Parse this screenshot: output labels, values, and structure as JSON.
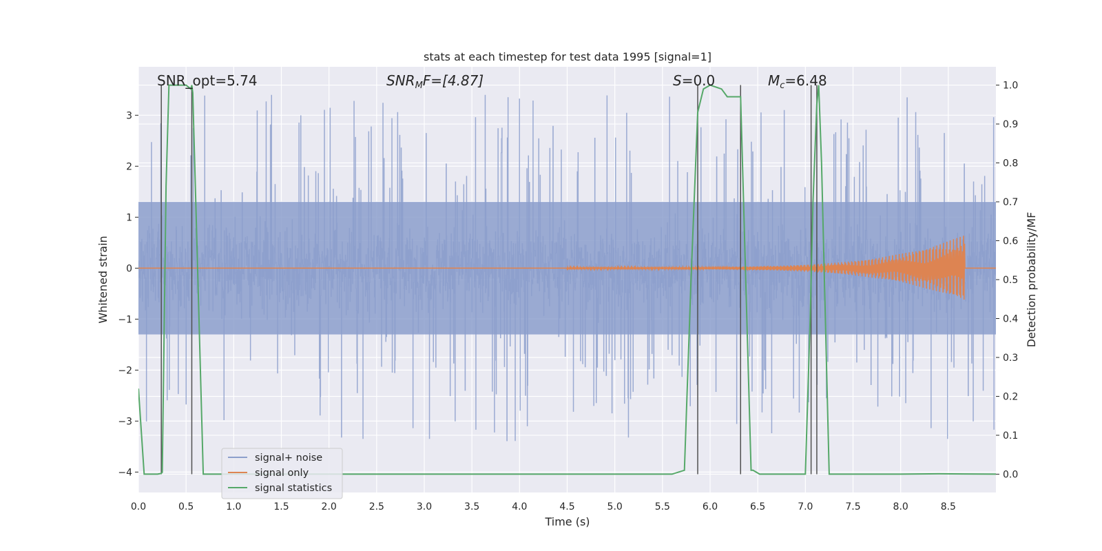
{
  "chart_data": {
    "type": "line",
    "title": "stats at each timestep for test data 1995 [signal=1]",
    "xlabel": "Time (s)",
    "ylabel_left": "Whitened strain",
    "ylabel_right": "Detection probability/MF",
    "xlim": [
      0.0,
      9.0
    ],
    "ylim_left": [
      -4.4,
      3.95
    ],
    "ylim_right": [
      -0.047,
      1.047
    ],
    "x_ticks": [
      "0.0",
      "0.5",
      "1.0",
      "1.5",
      "2.0",
      "2.5",
      "3.0",
      "3.5",
      "4.0",
      "4.5",
      "5.0",
      "5.5",
      "6.0",
      "6.5",
      "7.0",
      "7.5",
      "8.0",
      "8.5"
    ],
    "y_ticks_left": [
      "3",
      "2",
      "1",
      "0",
      "−1",
      "−2",
      "−3",
      "−4"
    ],
    "y_ticks_right": [
      "1.0",
      "0.9",
      "0.8",
      "0.7",
      "0.6",
      "0.5",
      "0.4",
      "0.3",
      "0.2",
      "0.1",
      "0.0"
    ],
    "annotations": {
      "snr_opt": "SNR_opt=5.74",
      "snr_mf_base": "SNR",
      "snr_mf_sub": "M",
      "snr_mf_rest": "F=[4.87]",
      "s_base": "S",
      "s_rest": "=0.0",
      "mc_base": "M",
      "mc_sub": "c",
      "mc_rest": "=6.48"
    },
    "legend": {
      "position": "lower-left",
      "entries": [
        "signal+ noise",
        "signal only",
        "signal statistics"
      ]
    },
    "series": [
      {
        "name": "signal+ noise",
        "axis": "left",
        "color": "#8c9fcc",
        "description": "whitened noisy strain, roughly +/-1.3 with spikes to about +/-3.5",
        "amplitude": 1.3,
        "spike_max": 3.6
      },
      {
        "name": "signal only",
        "axis": "left",
        "color": "#dd8452",
        "description": "chirp starting near 4.5 s, growing to about 0.65 at 8.67 s",
        "start": 4.5,
        "merger": 8.67,
        "peak_amplitude": 0.65
      },
      {
        "name": "signal statistics",
        "axis": "right",
        "color": "#55a868",
        "x": [
          0.0,
          0.06,
          0.2,
          0.24,
          0.25,
          0.29,
          0.32,
          0.5,
          0.55,
          0.56,
          0.57,
          0.68,
          0.69,
          1.0,
          2.0,
          3.0,
          4.0,
          5.0,
          5.6,
          5.73,
          5.8,
          5.87,
          5.93,
          6.0,
          6.12,
          6.18,
          6.25,
          6.32,
          6.43,
          6.45,
          6.52,
          7.0,
          7.05,
          7.08,
          7.12,
          7.14,
          7.17,
          7.25,
          7.3,
          8.0,
          8.4,
          9.0
        ],
        "values": [
          0.22,
          0.0,
          0.0,
          0.002,
          0.005,
          0.74,
          1.0,
          1.0,
          0.99,
          1.0,
          0.98,
          0.0,
          0.0,
          0.0,
          0.0,
          0.0,
          0.0,
          0.0,
          0.0,
          0.01,
          0.5,
          0.93,
          0.99,
          1.0,
          0.99,
          0.97,
          0.97,
          0.97,
          0.01,
          0.01,
          0.0,
          0.0,
          0.4,
          0.7,
          0.95,
          1.0,
          0.8,
          0.0,
          0.0,
          0.0,
          0.001,
          0.0
        ]
      }
    ],
    "vertical_markers": {
      "color": "#505050",
      "x": [
        0.24,
        0.56,
        5.87,
        6.32,
        7.06,
        7.12
      ],
      "top_values": [
        1.0,
        1.0,
        1.0,
        1.0,
        1.0,
        1.0
      ]
    }
  }
}
